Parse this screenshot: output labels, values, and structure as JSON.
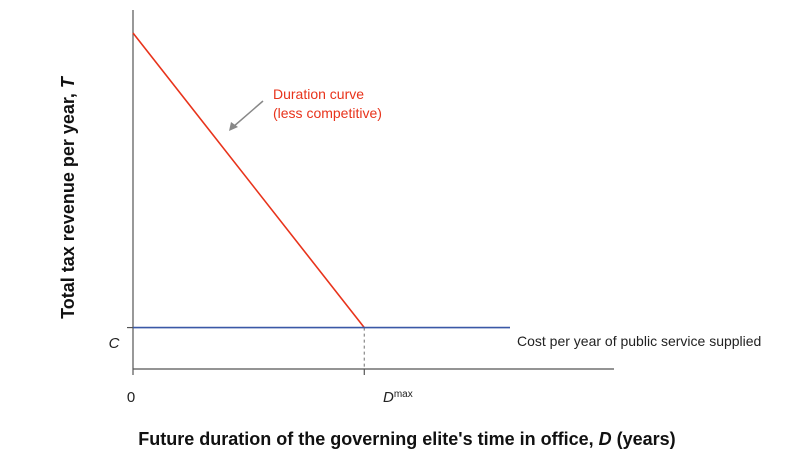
{
  "chart_data": {
    "type": "line",
    "xlabel": "Future duration of the governing elite's time in office,",
    "xlabel_var": "D",
    "xlabel_unit": "(years)",
    "ylabel": "Total tax revenue per year,",
    "ylabel_var": "T",
    "x_ticks": [
      {
        "label": "0",
        "x": 0
      },
      {
        "label": "D",
        "sup": "max",
        "x": 1
      }
    ],
    "y_ticks": [
      {
        "label": "C",
        "y": 1
      }
    ],
    "xlim": [
      0,
      1.63
    ],
    "ylim": [
      -0.35,
      11.35
    ],
    "grid": false,
    "legend": "none",
    "series": [
      {
        "name": "Duration curve\n(less competitive)",
        "color": "#e8331b",
        "x": [
          0,
          1
        ],
        "y": [
          10.6,
          1
        ]
      },
      {
        "name": "Cost per year of public service supplied",
        "color": "#3a58a6",
        "x": [
          0,
          1.63
        ],
        "y": [
          1,
          1
        ]
      }
    ],
    "annotations": {
      "duration_line1": "Duration curve",
      "duration_line2": "(less competitive)",
      "cost_label": "Cost per year of public service supplied"
    }
  }
}
